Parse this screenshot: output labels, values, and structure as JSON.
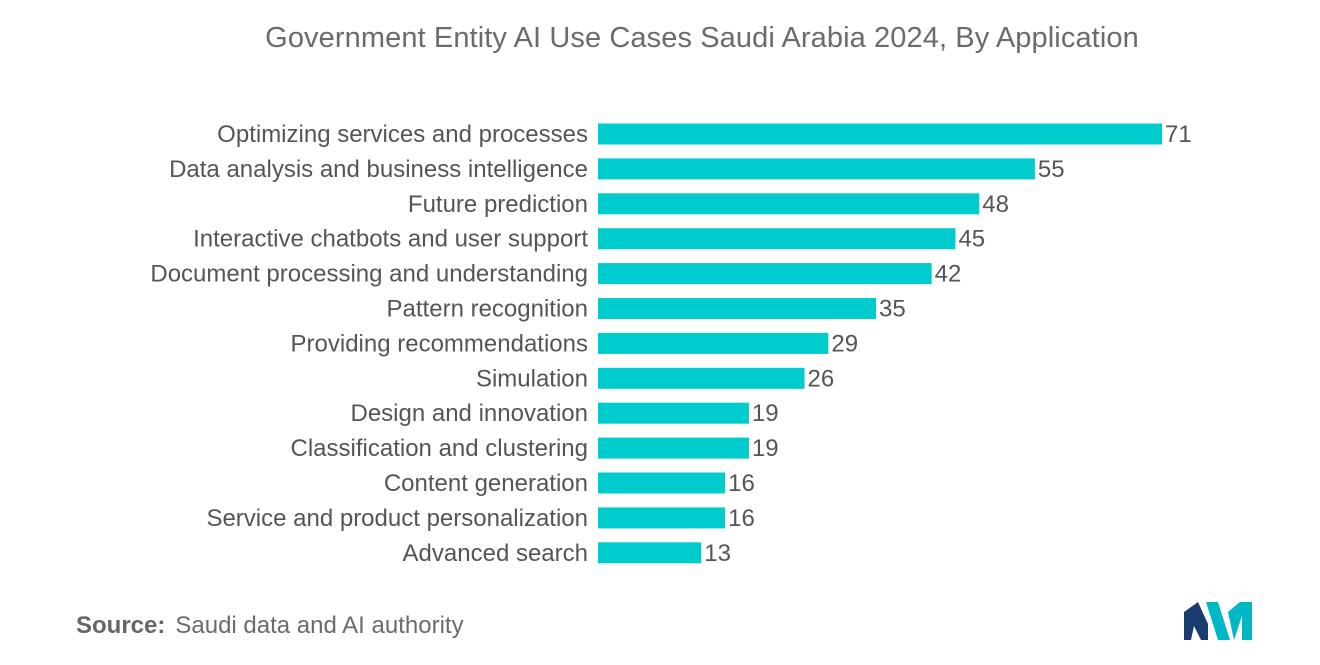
{
  "chart_data": {
    "type": "bar",
    "orientation": "horizontal",
    "title": "Government Entity AI Use Cases Saudi Arabia 2024, By Application",
    "xlabel": "",
    "ylabel": "",
    "xlim": [
      0,
      71
    ],
    "categories": [
      "Optimizing services and processes",
      "Data analysis and business intelligence",
      "Future prediction",
      "Interactive chatbots and user support",
      "Document processing and understanding",
      "Pattern recognition",
      "Providing recommendations",
      "Simulation",
      "Design and innovation",
      "Classification and clustering",
      "Content generation",
      "Service and product personalization",
      "Advanced search"
    ],
    "values": [
      71,
      55,
      48,
      45,
      42,
      35,
      29,
      26,
      19,
      19,
      16,
      16,
      13
    ],
    "bar_color": "#00ccce",
    "grid": false,
    "legend": "none"
  },
  "source": {
    "label": "Source:",
    "text": "Saudi data and AI authority"
  },
  "logo": {
    "icon": "mordor-intelligence-logo-icon",
    "color_left": "#1a3c6e",
    "color_right": "#00b7c6"
  }
}
